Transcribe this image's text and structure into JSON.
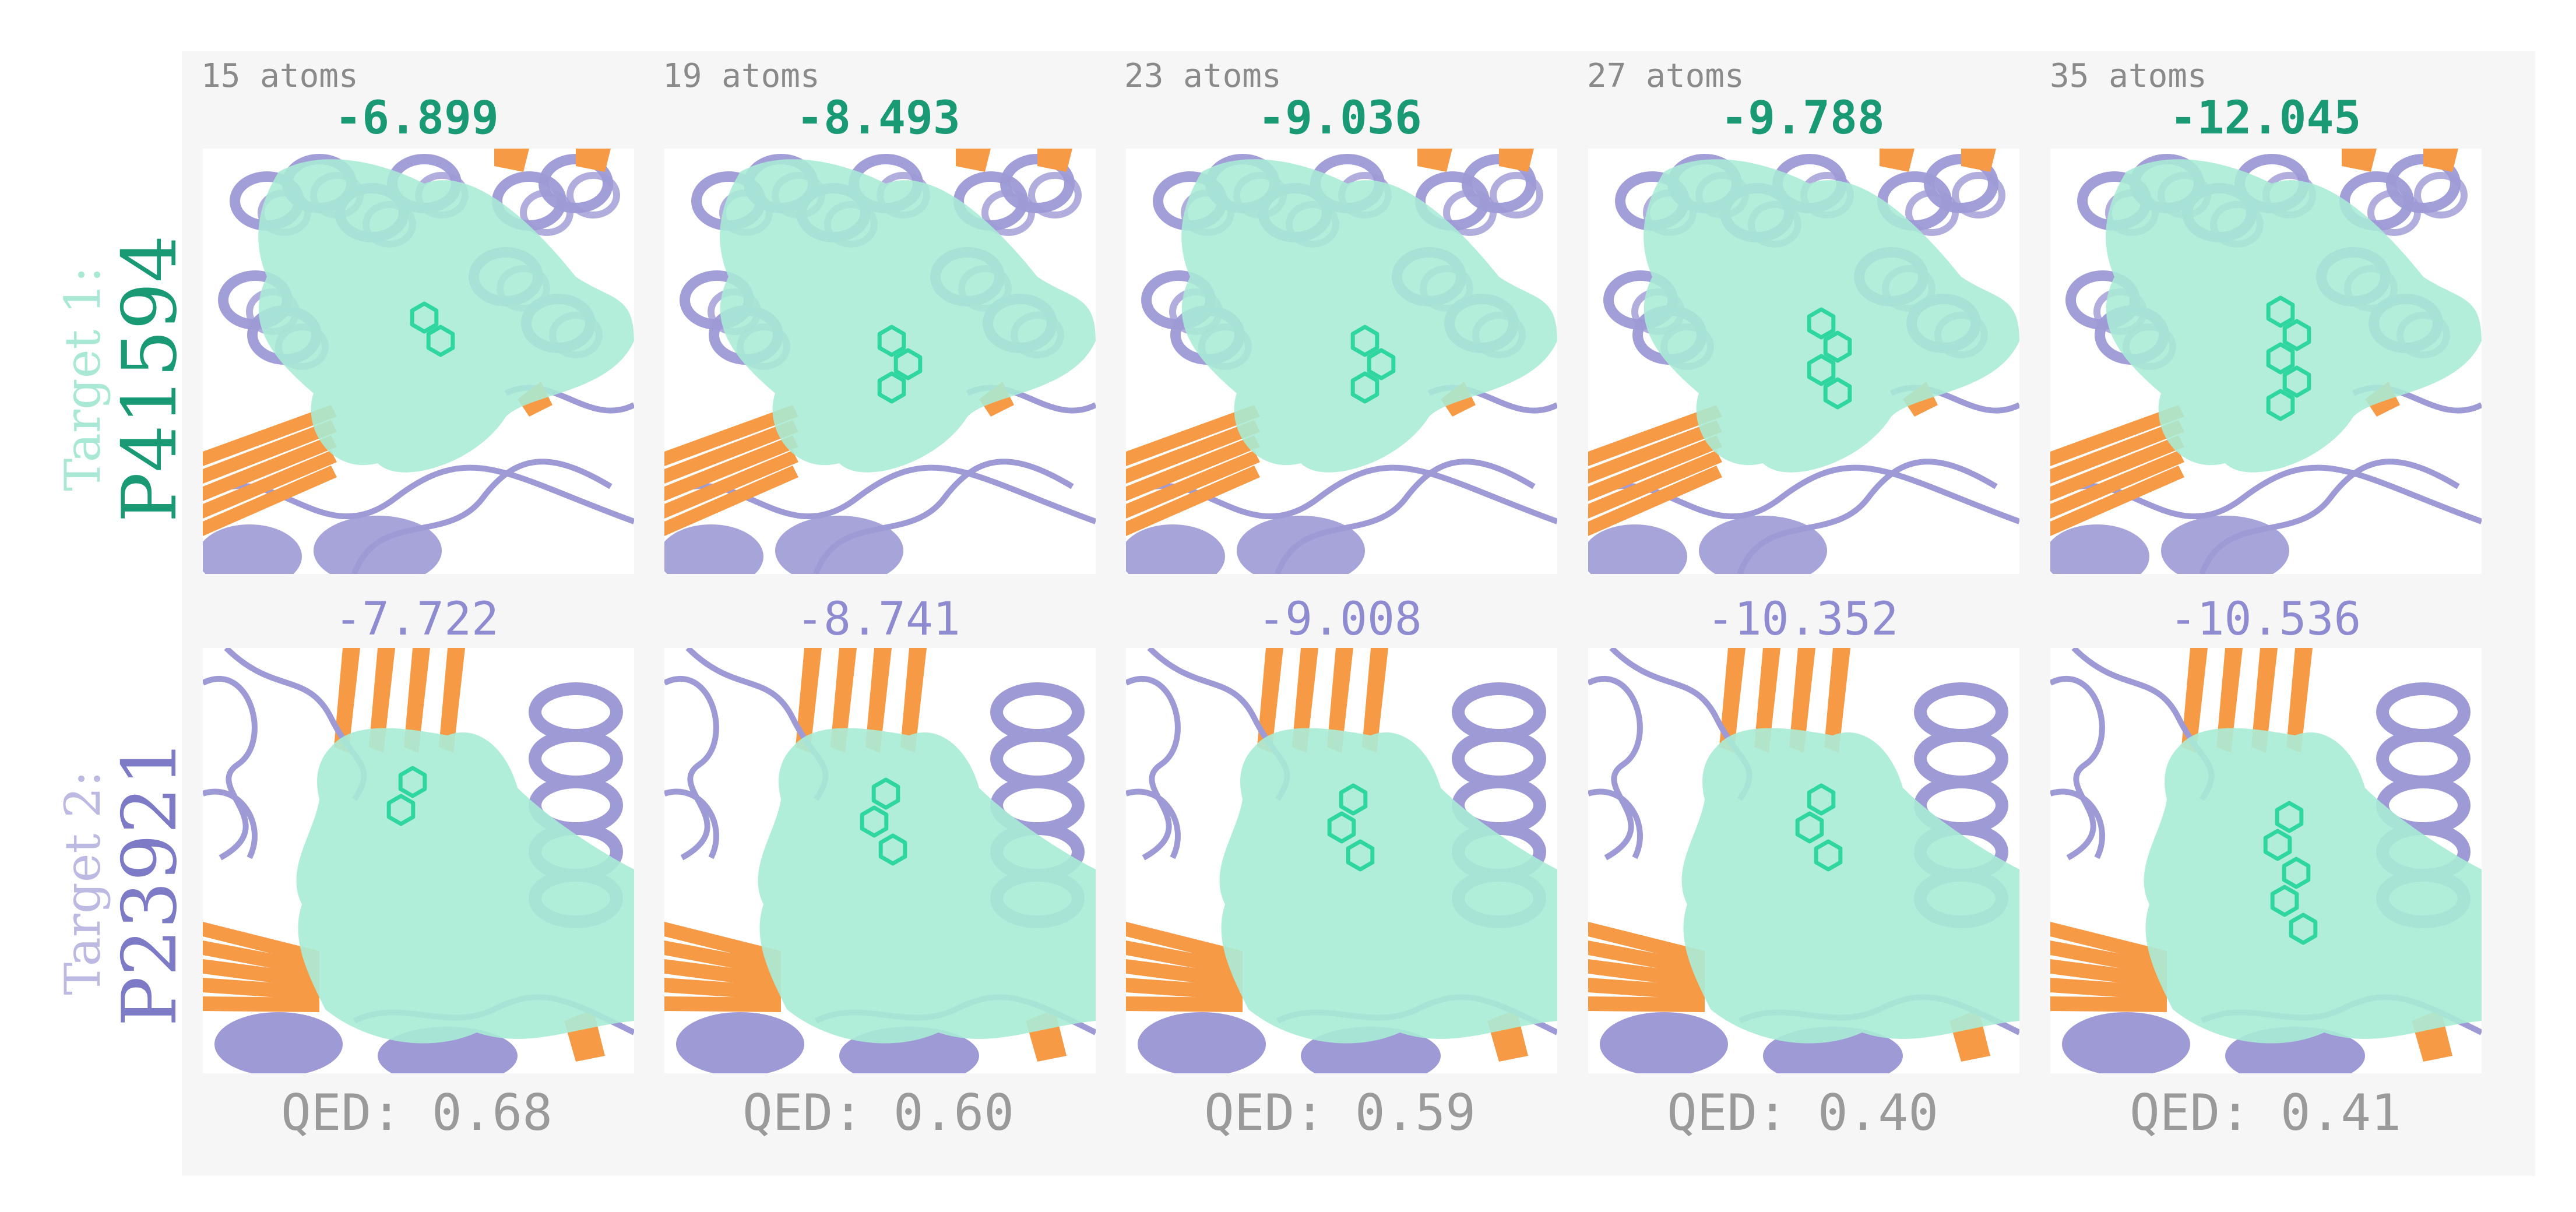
{
  "rows": [
    {
      "prefix": "Target 1:",
      "target": "P41594"
    },
    {
      "prefix": "Target 2:",
      "target": "P23921"
    }
  ],
  "columns": [
    {
      "atoms": "15 atoms",
      "score_t1": "-6.899",
      "score_t2": "-7.722",
      "qed": "QED: 0.68"
    },
    {
      "atoms": "19 atoms",
      "score_t1": "-8.493",
      "score_t2": "-8.741",
      "qed": "QED: 0.60"
    },
    {
      "atoms": "23 atoms",
      "score_t1": "-9.036",
      "score_t2": "-9.008",
      "qed": "QED: 0.59"
    },
    {
      "atoms": "27 atoms",
      "score_t1": "-9.788",
      "score_t2": "-10.352",
      "qed": "QED: 0.40"
    },
    {
      "atoms": "35 atoms",
      "score_t1": "-12.045",
      "score_t2": "-10.536",
      "qed": "QED: 0.41"
    }
  ],
  "colors": {
    "pocket_surface": "#a8ecd6",
    "helix": "#9d9ad6",
    "sheet": "#f79a45",
    "ligand": "#2fd6a0",
    "target1_score": "#1a9a74",
    "target2_score": "#8e8bd0"
  }
}
